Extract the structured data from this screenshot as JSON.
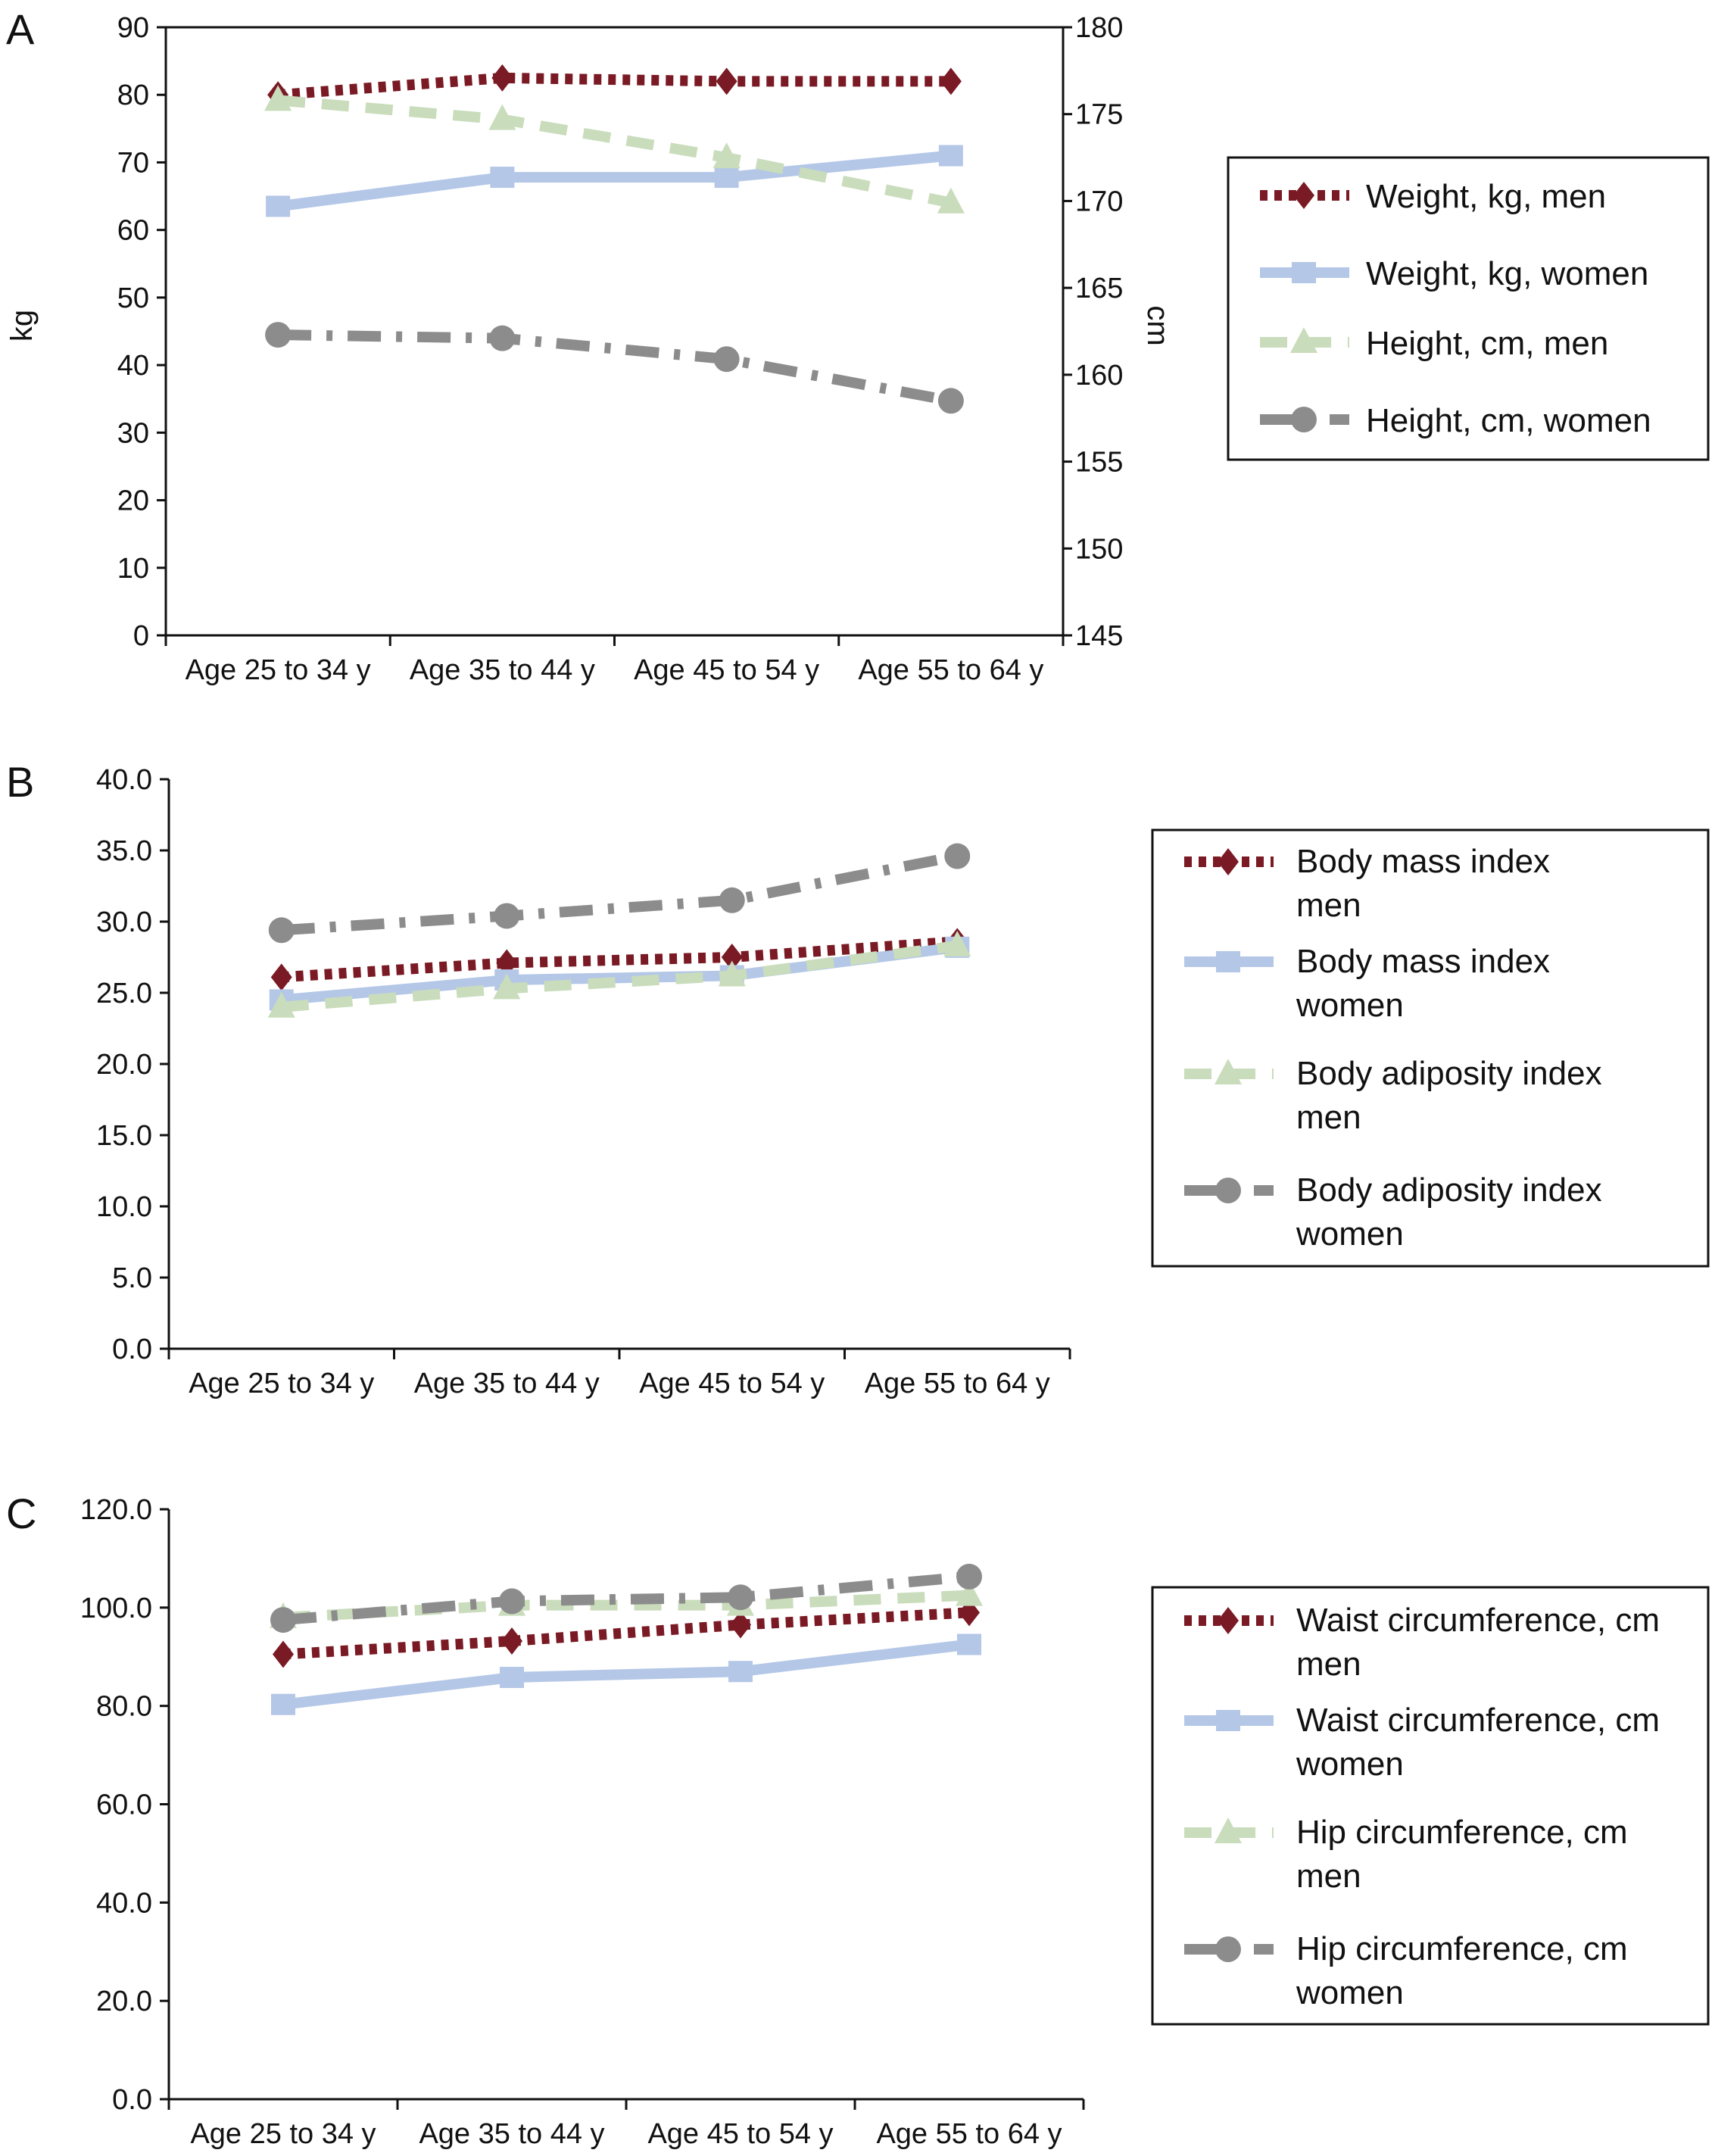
{
  "chart_data": [
    {
      "panel": "A",
      "type": "line",
      "categories": [
        "Age 25 to 34 y",
        "Age 35 to 44 y",
        "Age 45 to 54 y",
        "Age 55 to 64 y"
      ],
      "ylabel": "kg",
      "ylim": [
        0,
        90
      ],
      "yticks": [
        "0",
        "10",
        "20",
        "30",
        "40",
        "50",
        "60",
        "70",
        "80",
        "90"
      ],
      "y2label": "cm",
      "y2lim": [
        145,
        180
      ],
      "y2ticks": [
        "145",
        "150",
        "155",
        "160",
        "165",
        "170",
        "175",
        "180"
      ],
      "legend_position": "right",
      "series": [
        {
          "name": "Weight, kg, men",
          "axis": "left",
          "style": "dotted",
          "marker": "diamond",
          "color": "#7a1a24",
          "values": [
            80.0,
            82.5,
            82.0,
            82.0
          ]
        },
        {
          "name": "Weight, kg, women",
          "axis": "left",
          "style": "solid",
          "marker": "square",
          "color": "#b4c7e7",
          "values": [
            63.5,
            67.8,
            67.8,
            71.0
          ]
        },
        {
          "name": "Height, cm, men",
          "axis": "right",
          "style": "dashed",
          "marker": "triangle",
          "color": "#c9dcbb",
          "values": [
            175.8,
            174.7,
            172.5,
            169.9
          ]
        },
        {
          "name": "Height, cm, women",
          "axis": "right",
          "style": "dashdot",
          "marker": "circle",
          "color": "#8c8c8c",
          "values": [
            162.3,
            162.1,
            160.9,
            158.5
          ]
        }
      ]
    },
    {
      "panel": "B",
      "type": "line",
      "categories": [
        "Age 25 to 34 y",
        "Age 35 to 44 y",
        "Age 45 to 54 y",
        "Age 55 to 64 y"
      ],
      "ylabel": "",
      "ylim": [
        0,
        40
      ],
      "yticks": [
        "0.0",
        "5.0",
        "10.0",
        "15.0",
        "20.0",
        "25.0",
        "30.0",
        "35.0",
        "40.0"
      ],
      "legend_position": "right",
      "series": [
        {
          "name": "Body mass index men",
          "legend_lines": [
            "Body mass index",
            "men"
          ],
          "style": "dotted",
          "marker": "diamond",
          "color": "#7a1a24",
          "values": [
            26.1,
            27.1,
            27.5,
            28.6
          ]
        },
        {
          "name": "Body mass index women",
          "legend_lines": [
            "Body mass index",
            "women"
          ],
          "style": "solid",
          "marker": "square",
          "color": "#b4c7e7",
          "values": [
            24.5,
            25.9,
            26.2,
            28.2
          ]
        },
        {
          "name": "Body adiposity index men",
          "legend_lines": [
            "Body adiposity index",
            "men"
          ],
          "style": "dashed",
          "marker": "triangle",
          "color": "#c9dcbb",
          "values": [
            24.0,
            25.3,
            26.2,
            28.3
          ]
        },
        {
          "name": "Body adiposity index women",
          "legend_lines": [
            "Body adiposity index",
            "women"
          ],
          "style": "dashdot",
          "marker": "circle",
          "color": "#8c8c8c",
          "values": [
            29.4,
            30.4,
            31.5,
            34.6
          ]
        }
      ]
    },
    {
      "panel": "C",
      "type": "line",
      "categories": [
        "Age 25 to 34 y",
        "Age 35 to 44 y",
        "Age 45 to 54 y",
        "Age 55 to 64 y"
      ],
      "ylabel": "",
      "ylim": [
        0,
        120
      ],
      "yticks": [
        "0.0",
        "20.0",
        "40.0",
        "60.0",
        "80.0",
        "100.0",
        "120.0"
      ],
      "legend_position": "right",
      "series": [
        {
          "name": "Waist circumference, cm men",
          "legend_lines": [
            "Waist circumference, cm",
            "men"
          ],
          "style": "dotted",
          "marker": "diamond",
          "color": "#7a1a24",
          "values": [
            90.5,
            93.2,
            96.5,
            99.0
          ]
        },
        {
          "name": "Waist circumference, cm women",
          "legend_lines": [
            "Waist circumference, cm",
            "women"
          ],
          "style": "solid",
          "marker": "square",
          "color": "#b4c7e7",
          "values": [
            80.3,
            85.8,
            87.0,
            92.5
          ]
        },
        {
          "name": "Hip circumference, cm men",
          "legend_lines": [
            "Hip circumference, cm",
            "men"
          ],
          "style": "dashed",
          "marker": "triangle",
          "color": "#c9dcbb",
          "values": [
            98.0,
            100.5,
            100.5,
            102.5
          ]
        },
        {
          "name": "Hip circumference, cm women",
          "legend_lines": [
            "Hip circumference, cm",
            "women"
          ],
          "style": "dashdot",
          "marker": "circle",
          "color": "#8c8c8c",
          "values": [
            97.5,
            101.3,
            102.1,
            106.3
          ]
        }
      ]
    }
  ]
}
